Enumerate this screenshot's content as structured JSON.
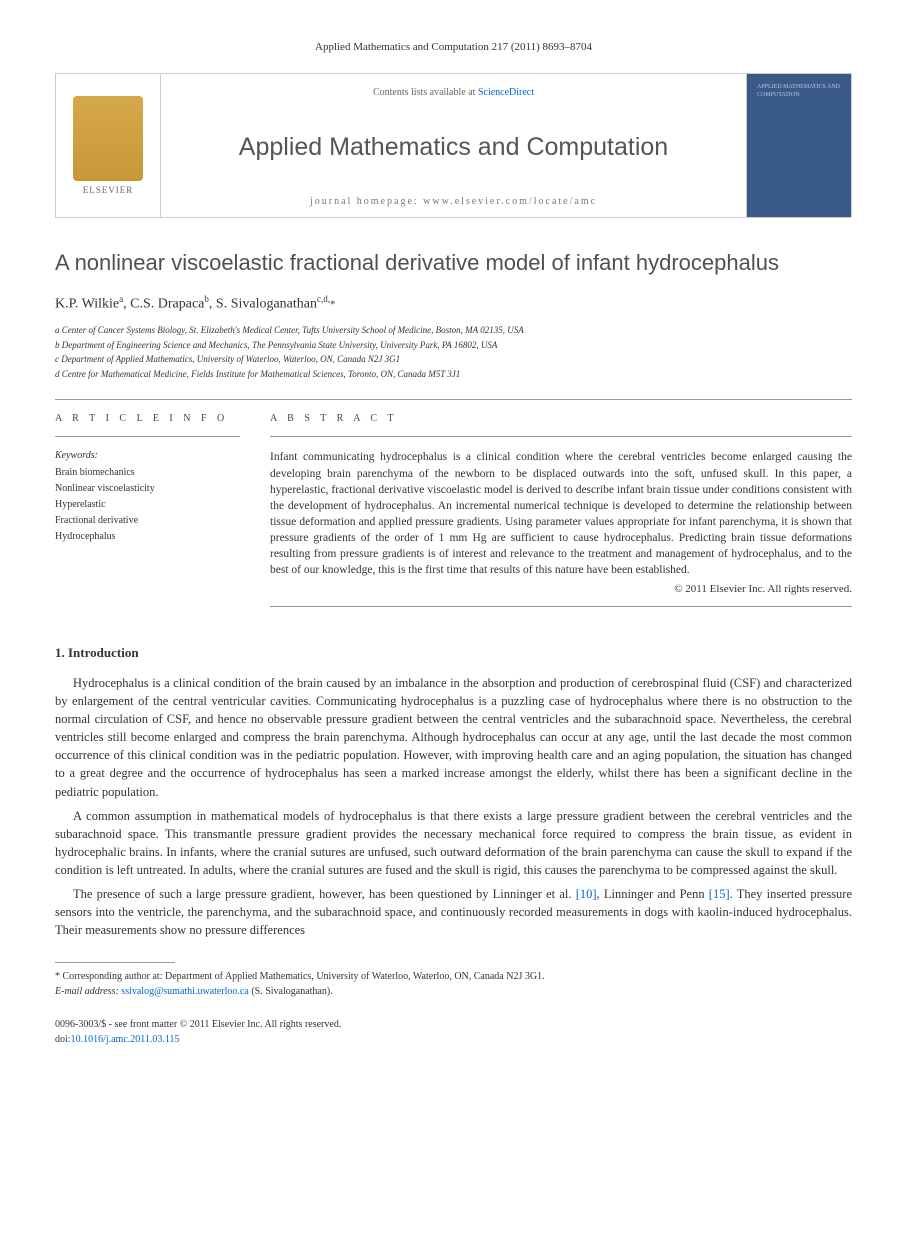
{
  "journal_ref": "Applied Mathematics and Computation 217 (2011) 8693–8704",
  "header": {
    "contents_prefix": "Contents lists available at ",
    "contents_link": "ScienceDirect",
    "journal_name": "Applied Mathematics and Computation",
    "homepage_prefix": "journal homepage: ",
    "homepage_url": "www.elsevier.com/locate/amc",
    "elsevier_label": "ELSEVIER",
    "cover_text": "APPLIED MATHEMATICS AND COMPUTATION"
  },
  "article": {
    "title": "A nonlinear viscoelastic fractional derivative model of infant hydrocephalus",
    "authors_html": "K.P. Wilkie",
    "author_a_sup": "a",
    "author_b": ", C.S. Drapaca",
    "author_b_sup": "b",
    "author_c": ", S. Sivaloganathan",
    "author_c_sup": "c,d,",
    "star": "*"
  },
  "affiliations": {
    "a": "a Center of Cancer Systems Biology, St. Elizabeth's Medical Center, Tufts University School of Medicine, Boston, MA 02135, USA",
    "b": "b Department of Engineering Science and Mechanics, The Pennsylvania State University, University Park, PA 16802, USA",
    "c": "c Department of Applied Mathematics, University of Waterloo, Waterloo, ON, Canada N2J 3G1",
    "d": "d Centre for Mathematical Medicine, Fields Institute for Mathematical Sciences, Toronto, ON, Canada M5T 3J1"
  },
  "info": {
    "section_label": "A R T I C L E   I N F O",
    "keywords_label": "Keywords:",
    "keywords": [
      "Brain biomechanics",
      "Nonlinear viscoelasticity",
      "Hyperelastic",
      "Fractional derivative",
      "Hydrocephalus"
    ]
  },
  "abstract": {
    "section_label": "A B S T R A C T",
    "text": "Infant communicating hydrocephalus is a clinical condition where the cerebral ventricles become enlarged causing the developing brain parenchyma of the newborn to be displaced outwards into the soft, unfused skull. In this paper, a hyperelastic, fractional derivative viscoelastic model is derived to describe infant brain tissue under conditions consistent with the development of hydrocephalus. An incremental numerical technique is developed to determine the relationship between tissue deformation and applied pressure gradients. Using parameter values appropriate for infant parenchyma, it is shown that pressure gradients of the order of 1 mm Hg are sufficient to cause hydrocephalus. Predicting brain tissue deformations resulting from pressure gradients is of interest and relevance to the treatment and management of hydrocephalus, and to the best of our knowledge, this is the first time that results of this nature have been established.",
    "copyright": "© 2011 Elsevier Inc. All rights reserved."
  },
  "body": {
    "h1": "1. Introduction",
    "p1": "Hydrocephalus is a clinical condition of the brain caused by an imbalance in the absorption and production of cerebrospinal fluid (CSF) and characterized by enlargement of the central ventricular cavities. Communicating hydrocephalus is a puzzling case of hydrocephalus where there is no obstruction to the normal circulation of CSF, and hence no observable pressure gradient between the central ventricles and the subarachnoid space. Nevertheless, the cerebral ventricles still become enlarged and compress the brain parenchyma. Although hydrocephalus can occur at any age, until the last decade the most common occurrence of this clinical condition was in the pediatric population. However, with improving health care and an aging population, the situation has changed to a great degree and the occurrence of hydrocephalus has seen a marked increase amongst the elderly, whilst there has been a significant decline in the pediatric population.",
    "p2": "A common assumption in mathematical models of hydrocephalus is that there exists a large pressure gradient between the cerebral ventricles and the subarachnoid space. This transmantle pressure gradient provides the necessary mechanical force required to compress the brain tissue, as evident in hydrocephalic brains. In infants, where the cranial sutures are unfused, such outward deformation of the brain parenchyma can cause the skull to expand if the condition is left untreated. In adults, where the cranial sutures are fused and the skull is rigid, this causes the parenchyma to be compressed against the skull.",
    "p3_a": "The presence of such a large pressure gradient, however, has been questioned by Linninger et al. ",
    "p3_ref1": "[10]",
    "p3_b": ", Linninger and Penn ",
    "p3_ref2": "[15]",
    "p3_c": ". They inserted pressure sensors into the ventricle, the parenchyma, and the subarachnoid space, and continuously recorded measurements in dogs with kaolin-induced hydrocephalus. Their measurements show no pressure differences"
  },
  "footnote": {
    "corr": "* Corresponding author at: Department of Applied Mathematics, University of Waterloo, Waterloo, ON, Canada N2J 3G1.",
    "email_label": "E-mail address: ",
    "email": "ssivalog@sumathi.uwaterloo.ca",
    "email_suffix": " (S. Sivaloganathan)."
  },
  "footer": {
    "issn": "0096-3003/$ - see front matter © 2011 Elsevier Inc. All rights reserved.",
    "doi_label": "doi:",
    "doi": "10.1016/j.amc.2011.03.115"
  },
  "colors": {
    "link": "#0066cc",
    "cover_bg": "#3a5a8a",
    "elsevier_orange": "#d4a84a",
    "rule": "#999999",
    "text": "#333333"
  }
}
